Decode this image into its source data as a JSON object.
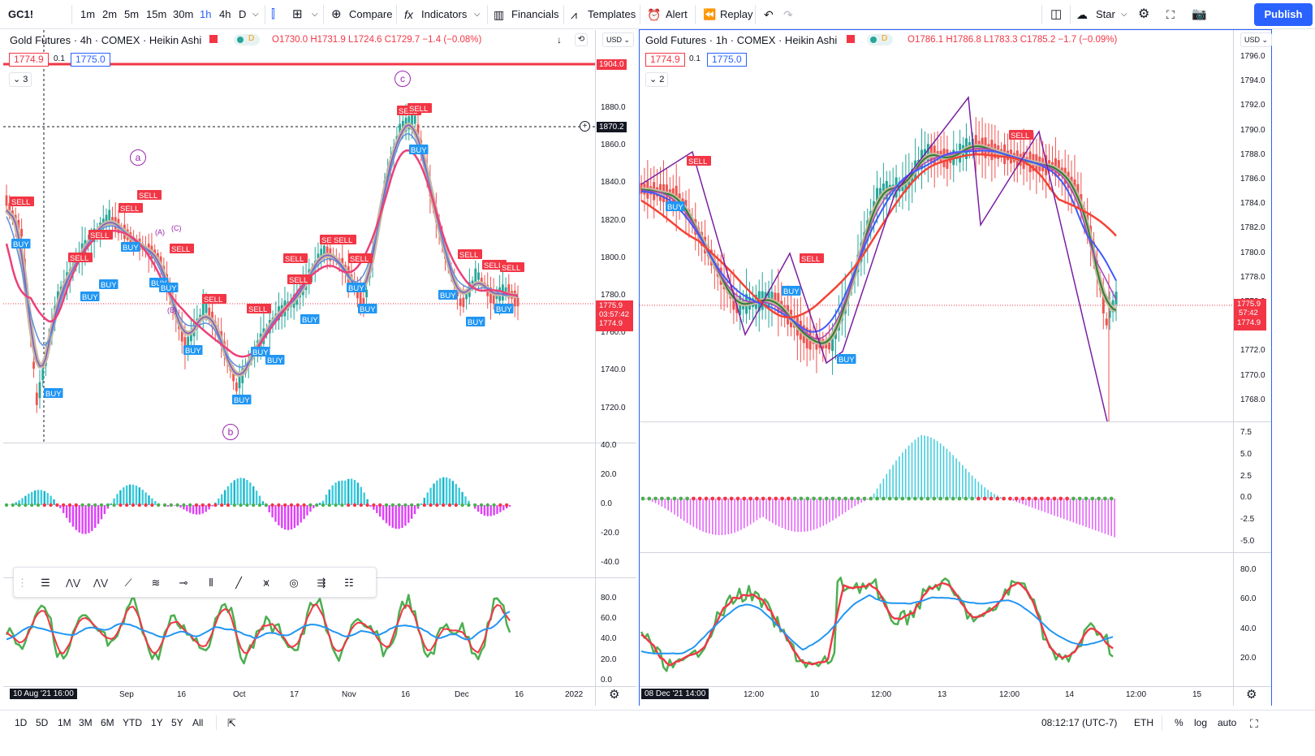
{
  "topbar": {
    "symbol": "GC1!",
    "intervals": [
      "1m",
      "2m",
      "5m",
      "15m",
      "30m",
      "1h",
      "4h",
      "D"
    ],
    "active_interval": "1h",
    "compare": "Compare",
    "indicators": "Indicators",
    "financials": "Financials",
    "templates": "Templates",
    "alert": "Alert",
    "replay": "Replay",
    "layout_name": "Star",
    "publish": "Publish"
  },
  "left": {
    "title": "Gold Futures · 4h · COMEX · Heikin Ashi",
    "ohlc": "O1730.0 H1731.9 L1724.6 C1729.7 −1.4 (−0.08%)",
    "bid": "1774.9",
    "step": "0.1",
    "ask": "1775.0",
    "indicators_count": "3",
    "currency": "USD",
    "y_labels": [
      "1880.0",
      "1860.0",
      "1840.0",
      "1820.0",
      "1800.0",
      "1780.0",
      "1760.0",
      "1740.0",
      "1720.0"
    ],
    "red_line": "1904.0",
    "crosshair_price": "1870.2",
    "price_last": "1775.9",
    "price_timer": "03:57:42",
    "price_bid": "1774.9",
    "x_labels": [
      "Sep",
      "16",
      "Oct",
      "17",
      "Nov",
      "16",
      "Dec",
      "16",
      "2022"
    ],
    "x_crosshair": "10 Aug '21   16:00",
    "osc_labels": [
      "40.0",
      "20.0",
      "0.0",
      "-20.0",
      "-40.0"
    ],
    "rsi_labels": [
      "80.0",
      "60.0",
      "40.0",
      "20.0",
      "0.0"
    ],
    "waves": [
      "a",
      "b",
      "c"
    ],
    "wave_small": [
      "(A)",
      "(B)",
      "(C)"
    ]
  },
  "right": {
    "title": "Gold Futures · 1h · COMEX · Heikin Ashi",
    "ohlc": "O1786.1 H1786.8 L1783.3 C1785.2 −1.7 (−0.09%)",
    "bid": "1774.9",
    "step": "0.1",
    "ask": "1775.0",
    "indicators_count": "2",
    "currency": "USD",
    "y_labels": [
      "1796.0",
      "1794.0",
      "1792.0",
      "1790.0",
      "1788.0",
      "1786.0",
      "1784.0",
      "1782.0",
      "1780.0",
      "1778.0",
      "1776.0",
      "1774.0",
      "1772.0",
      "1770.0",
      "1768.0"
    ],
    "price_last": "1775.9",
    "price_timer": "57:42",
    "price_bid": "1774.9",
    "x_labels": [
      "12:00",
      "10",
      "12:00",
      "13",
      "12:00",
      "14",
      "12:00",
      "15"
    ],
    "x_crosshair": "08 Dec '21   14:00",
    "osc_labels": [
      "7.5",
      "5.0",
      "2.5",
      "0.0",
      "-2.5",
      "-5.0"
    ],
    "rsi_labels": [
      "80.0",
      "60.0",
      "40.0",
      "20.0"
    ]
  },
  "bottombar": {
    "ranges": [
      "1D",
      "5D",
      "1M",
      "3M",
      "6M",
      "YTD",
      "1Y",
      "5Y",
      "All"
    ],
    "clock": "08:12:17 (UTC-7)",
    "session": "ETH",
    "pct": "%",
    "log": "log",
    "auto": "auto"
  },
  "colors": {
    "accent": "#2962ff",
    "sell": "#f23645",
    "buy": "#2196f3",
    "rsi_green": "#4caf50",
    "osc_cyan": "#26c6da",
    "osc_magenta": "#d500f9"
  }
}
